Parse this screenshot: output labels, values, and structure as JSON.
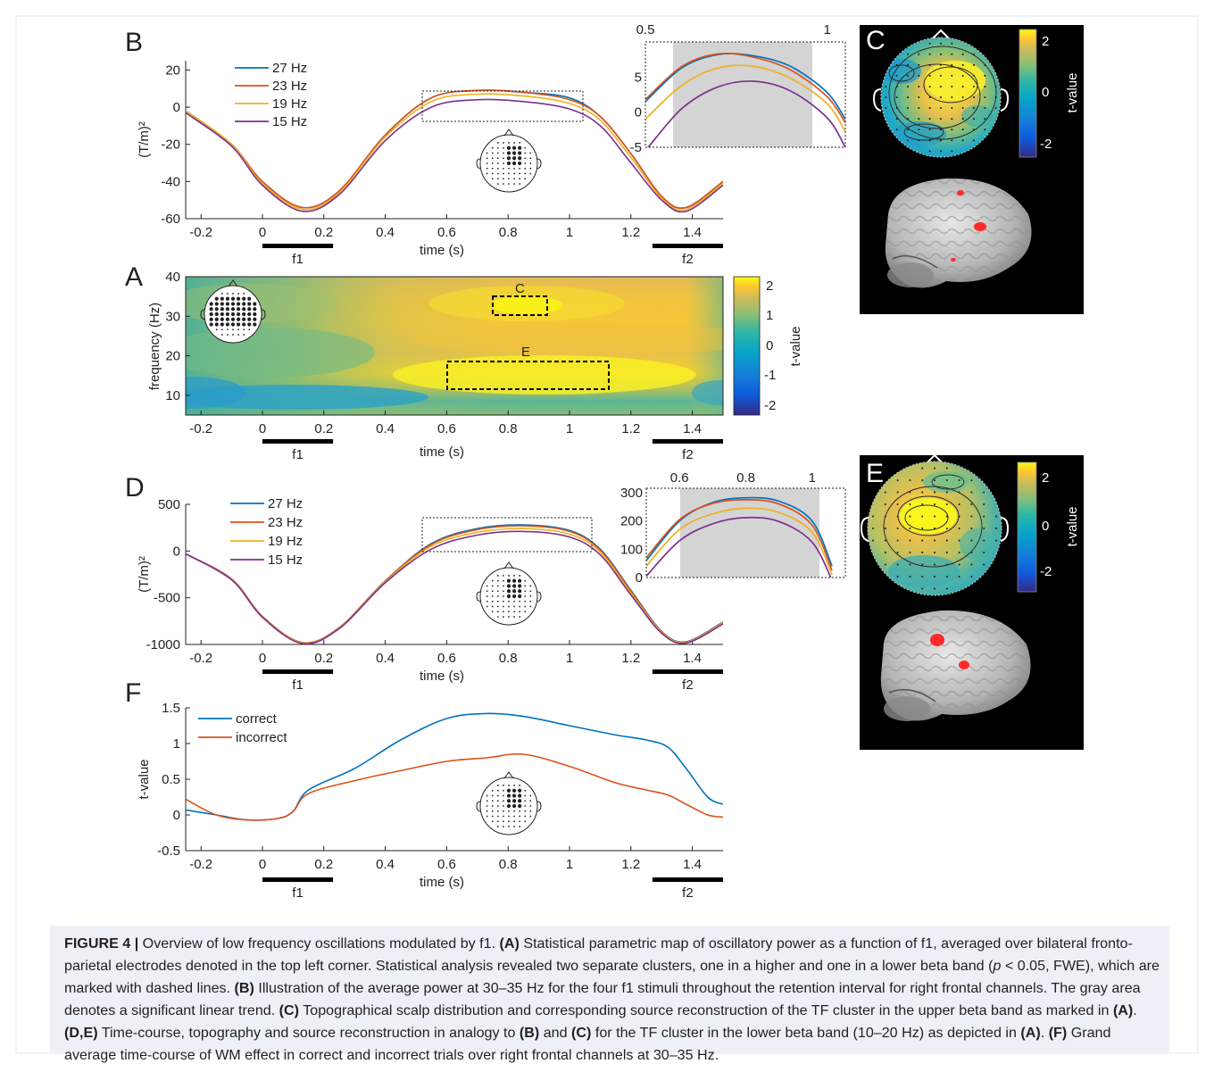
{
  "figure": {
    "panels": {
      "A": {
        "letter": "A",
        "ylabel": "frequency (Hz)",
        "xlabel": "time (s)",
        "colorbar_label": "t-value",
        "colorbar_ticks": [
          "2",
          "1",
          "0",
          "-1",
          "-2"
        ],
        "box_labels": [
          "C",
          "E"
        ],
        "stim_labels": [
          "f1",
          "f2"
        ]
      },
      "B": {
        "letter": "B"
      },
      "C": {
        "letter": "C",
        "colorbar_label": "t-value",
        "colorbar_ticks": [
          "2",
          "0",
          "-2"
        ]
      },
      "D": {
        "letter": "D"
      },
      "E": {
        "letter": "E",
        "colorbar_label": "t-value",
        "colorbar_ticks": [
          "2",
          "0",
          "-2"
        ]
      },
      "F": {
        "letter": "F"
      }
    },
    "colors": {
      "27hz": "#0072bd",
      "23hz": "#d95319",
      "19hz": "#edb120",
      "15hz": "#7e2f8e",
      "correct": "#0072bd",
      "incorrect": "#d95319",
      "stim_bar": "#000000",
      "caption_bg": "#eef0f8"
    },
    "icons": [
      "head-sensor-layout-icon",
      "scalp-topography-icon",
      "brain-render-icon"
    ]
  },
  "chart_data": [
    {
      "panel": "B",
      "type": "line",
      "xlabel": "time (s)",
      "ylabel": "(T/m)²",
      "xlim": [
        -0.25,
        1.5
      ],
      "ylim": [
        -60,
        25
      ],
      "xticks": [
        "-0.2",
        "0",
        "0.2",
        "0.4",
        "0.6",
        "0.8",
        "1",
        "1.2",
        "1.4"
      ],
      "yticks": [
        "20",
        "0",
        "-20",
        "-40",
        "-60"
      ],
      "legend": "top-left",
      "series": [
        {
          "name": "27 Hz",
          "color": "#0072bd",
          "x": [
            -0.25,
            -0.1,
            0.0,
            0.13,
            0.25,
            0.4,
            0.55,
            0.7,
            0.85,
            1.0,
            1.1,
            1.2,
            1.3,
            1.38,
            1.5
          ],
          "y": [
            -2,
            -20,
            -40,
            -54,
            -45,
            -15,
            5,
            9,
            8,
            5,
            -5,
            -25,
            -48,
            -54,
            -40
          ]
        },
        {
          "name": "23 Hz",
          "color": "#d95319",
          "x": [
            -0.25,
            -0.1,
            0.0,
            0.13,
            0.25,
            0.4,
            0.55,
            0.7,
            0.85,
            1.0,
            1.1,
            1.2,
            1.3,
            1.38,
            1.5
          ],
          "y": [
            -2,
            -20,
            -40,
            -54,
            -45,
            -15,
            5,
            9,
            8,
            4,
            -5,
            -25,
            -48,
            -54,
            -40
          ]
        },
        {
          "name": "19 Hz",
          "color": "#edb120",
          "x": [
            -0.25,
            -0.1,
            0.0,
            0.13,
            0.25,
            0.4,
            0.55,
            0.7,
            0.85,
            1.0,
            1.1,
            1.2,
            1.3,
            1.38,
            1.5
          ],
          "y": [
            -2,
            -20,
            -41,
            -55,
            -46,
            -16,
            3,
            7,
            6,
            2,
            -7,
            -27,
            -49,
            -55,
            -41
          ]
        },
        {
          "name": "15 Hz",
          "color": "#7e2f8e",
          "x": [
            -0.25,
            -0.1,
            0.0,
            0.13,
            0.25,
            0.4,
            0.55,
            0.7,
            0.85,
            1.0,
            1.1,
            1.2,
            1.3,
            1.38,
            1.5
          ],
          "y": [
            -3,
            -21,
            -42,
            -56,
            -47,
            -18,
            0,
            4,
            3,
            -1,
            -10,
            -30,
            -50,
            -56,
            -42
          ]
        }
      ]
    },
    {
      "panel": "B-inset",
      "type": "line",
      "xlim": [
        0.5,
        1.05
      ],
      "ylim": [
        -5,
        10
      ],
      "xticks": [
        "0.5",
        "1"
      ],
      "yticks": [
        "5",
        "0",
        "-5"
      ],
      "shaded_x": [
        0.57,
        1.0
      ],
      "series": [
        {
          "name": "27 Hz",
          "color": "#0072bd",
          "x": [
            0.5,
            0.6,
            0.7,
            0.8,
            0.9,
            1.0,
            1.05
          ],
          "y": [
            1.5,
            6.3,
            8.2,
            8.0,
            6.5,
            2.8,
            -1
          ]
        },
        {
          "name": "23 Hz",
          "color": "#d95319",
          "x": [
            0.5,
            0.6,
            0.7,
            0.8,
            0.9,
            1.0,
            1.05
          ],
          "y": [
            1.8,
            6.5,
            8.3,
            7.8,
            6.0,
            2.2,
            -1.5
          ]
        },
        {
          "name": "19 Hz",
          "color": "#edb120",
          "x": [
            0.5,
            0.6,
            0.7,
            0.8,
            0.9,
            1.0,
            1.05
          ],
          "y": [
            -1.0,
            3.8,
            6.3,
            6.5,
            4.8,
            1.2,
            -2.8
          ]
        },
        {
          "name": "15 Hz",
          "color": "#7e2f8e",
          "x": [
            0.5,
            0.6,
            0.7,
            0.8,
            0.9,
            1.0,
            1.05
          ],
          "y": [
            -5.5,
            0.5,
            3.6,
            4.4,
            3.0,
            -0.8,
            -5
          ]
        }
      ]
    },
    {
      "panel": "A",
      "type": "heatmap",
      "xlabel": "time (s)",
      "ylabel": "frequency (Hz)",
      "xlim": [
        -0.25,
        1.5
      ],
      "ylim": [
        5,
        40
      ],
      "xticks": [
        "-0.2",
        "0",
        "0.2",
        "0.4",
        "0.6",
        "0.8",
        "1",
        "1.2",
        "1.4"
      ],
      "yticks": [
        "40",
        "30",
        "20",
        "10"
      ],
      "color_range": [
        -2.3,
        2.3
      ],
      "clusters": [
        {
          "label": "C",
          "t": [
            0.75,
            0.93
          ],
          "f": [
            29,
            35
          ]
        },
        {
          "label": "E",
          "t": [
            0.6,
            1.12
          ],
          "f": [
            11,
            19
          ]
        }
      ]
    },
    {
      "panel": "D",
      "type": "line",
      "xlabel": "time (s)",
      "ylabel": "(T/m)²",
      "xlim": [
        -0.25,
        1.5
      ],
      "ylim": [
        -1000,
        500
      ],
      "xticks": [
        "-0.2",
        "0",
        "0.2",
        "0.4",
        "0.6",
        "0.8",
        "1",
        "1.2",
        "1.4"
      ],
      "yticks": [
        "500",
        "0",
        "-500",
        "-1000"
      ],
      "legend": "top-left",
      "series": [
        {
          "name": "27 Hz",
          "color": "#0072bd",
          "x": [
            -0.25,
            -0.1,
            0.0,
            0.13,
            0.25,
            0.4,
            0.55,
            0.7,
            0.85,
            1.0,
            1.1,
            1.2,
            1.3,
            1.38,
            1.5
          ],
          "y": [
            -30,
            -300,
            -700,
            -980,
            -820,
            -320,
            80,
            240,
            280,
            220,
            20,
            -420,
            -860,
            -970,
            -760
          ]
        },
        {
          "name": "23 Hz",
          "color": "#d95319",
          "x": [
            -0.25,
            -0.1,
            0.0,
            0.13,
            0.25,
            0.4,
            0.55,
            0.7,
            0.85,
            1.0,
            1.1,
            1.2,
            1.3,
            1.38,
            1.5
          ],
          "y": [
            -30,
            -300,
            -700,
            -980,
            -820,
            -320,
            70,
            230,
            270,
            210,
            10,
            -430,
            -865,
            -975,
            -765
          ]
        },
        {
          "name": "19 Hz",
          "color": "#edb120",
          "x": [
            -0.25,
            -0.1,
            0.0,
            0.13,
            0.25,
            0.4,
            0.55,
            0.7,
            0.85,
            1.0,
            1.1,
            1.2,
            1.3,
            1.38,
            1.5
          ],
          "y": [
            -30,
            -305,
            -705,
            -985,
            -825,
            -330,
            50,
            200,
            240,
            180,
            -10,
            -450,
            -870,
            -978,
            -770
          ]
        },
        {
          "name": "15 Hz",
          "color": "#7e2f8e",
          "x": [
            -0.25,
            -0.1,
            0.0,
            0.13,
            0.25,
            0.4,
            0.55,
            0.7,
            0.85,
            1.0,
            1.1,
            1.2,
            1.3,
            1.38,
            1.5
          ],
          "y": [
            -30,
            -310,
            -710,
            -990,
            -830,
            -340,
            20,
            170,
            210,
            150,
            -40,
            -470,
            -880,
            -985,
            -780
          ]
        }
      ]
    },
    {
      "panel": "D-inset",
      "type": "line",
      "xlim": [
        0.5,
        1.1
      ],
      "ylim": [
        0,
        300
      ],
      "xticks": [
        "0.6",
        "0.8",
        "1"
      ],
      "yticks": [
        "300",
        "200",
        "100",
        "0"
      ],
      "shaded_x": [
        0.6,
        1.03
      ],
      "series": [
        {
          "name": "27 Hz",
          "color": "#0072bd",
          "x": [
            0.5,
            0.6,
            0.7,
            0.8,
            0.9,
            1.0,
            1.06
          ],
          "y": [
            60,
            200,
            265,
            282,
            270,
            200,
            40
          ]
        },
        {
          "name": "23 Hz",
          "color": "#d95319",
          "x": [
            0.5,
            0.6,
            0.7,
            0.8,
            0.9,
            1.0,
            1.06
          ],
          "y": [
            70,
            205,
            262,
            275,
            260,
            185,
            25
          ]
        },
        {
          "name": "19 Hz",
          "color": "#edb120",
          "x": [
            0.5,
            0.6,
            0.7,
            0.8,
            0.9,
            1.0,
            1.06
          ],
          "y": [
            40,
            170,
            225,
            245,
            230,
            160,
            10
          ]
        },
        {
          "name": "15 Hz",
          "color": "#7e2f8e",
          "x": [
            0.5,
            0.6,
            0.7,
            0.8,
            0.9,
            1.0,
            1.06
          ],
          "y": [
            5,
            130,
            190,
            212,
            198,
            125,
            -10
          ]
        }
      ]
    },
    {
      "panel": "F",
      "type": "line",
      "xlabel": "time (s)",
      "ylabel": "t-value",
      "xlim": [
        -0.25,
        1.5
      ],
      "ylim": [
        -0.5,
        1.5
      ],
      "xticks": [
        "-0.2",
        "0",
        "0.2",
        "0.4",
        "0.6",
        "0.8",
        "1",
        "1.2",
        "1.4"
      ],
      "yticks": [
        "1.5",
        "1",
        "0.5",
        "0",
        "-0.5"
      ],
      "legend": "top-left",
      "series": [
        {
          "name": "correct",
          "color": "#0072bd",
          "x": [
            -0.25,
            -0.15,
            -0.05,
            0.05,
            0.1,
            0.15,
            0.3,
            0.45,
            0.6,
            0.73,
            0.85,
            1.0,
            1.15,
            1.25,
            1.32,
            1.38,
            1.45,
            1.5
          ],
          "y": [
            0.07,
            0.0,
            -0.07,
            -0.05,
            0.05,
            0.35,
            0.65,
            1.05,
            1.35,
            1.42,
            1.38,
            1.25,
            1.12,
            1.05,
            0.95,
            0.65,
            0.25,
            0.15
          ]
        },
        {
          "name": "incorrect",
          "color": "#d95319",
          "x": [
            -0.25,
            -0.15,
            -0.05,
            0.05,
            0.1,
            0.15,
            0.3,
            0.45,
            0.6,
            0.73,
            0.85,
            1.0,
            1.15,
            1.25,
            1.32,
            1.38,
            1.45,
            1.5
          ],
          "y": [
            0.22,
            0.0,
            -0.07,
            -0.05,
            0.05,
            0.3,
            0.48,
            0.62,
            0.75,
            0.8,
            0.85,
            0.68,
            0.45,
            0.35,
            0.28,
            0.15,
            0.0,
            -0.03
          ]
        }
      ]
    }
  ],
  "caption": {
    "fig_label": "FIGURE 4 |",
    "s1": " Overview of low frequency oscillations modulated by f1. ",
    "a_ref": "(A)",
    "s2": " Statistical parametric map of oscillatory power as a function of f1, averaged over bilateral fronto-parietal electrodes denoted in the top left corner. Statistical analysis revealed two separate clusters, one in a higher and one in a lower beta band (",
    "p_sym": "p",
    "s3": " < 0.05, FWE), which are marked with dashed lines. ",
    "b_ref": "(B)",
    "s4": " Illustration of the average power at 30–35 Hz for the four f1 stimuli throughout the retention interval for right frontal channels. The gray area denotes a significant linear trend. ",
    "c_ref": "(C)",
    "s5": " Topographical scalp distribution and corresponding source reconstruction of the TF cluster in the upper beta band as marked in ",
    "a_ref2": "(A)",
    "s6": ". ",
    "de_ref": "(D,E)",
    "s7": " Time-course, topography and source reconstruction in analogy to ",
    "b_ref2": "(B)",
    "s8": " and ",
    "c_ref2": "(C)",
    "s9": " for the TF cluster in the lower beta band (10–20 Hz) as depicted in ",
    "a_ref3": "(A)",
    "s10": ". ",
    "f_ref": "(F)",
    "s11": " Grand average time-course of WM effect in correct and incorrect trials over right frontal channels at 30–35 Hz."
  }
}
